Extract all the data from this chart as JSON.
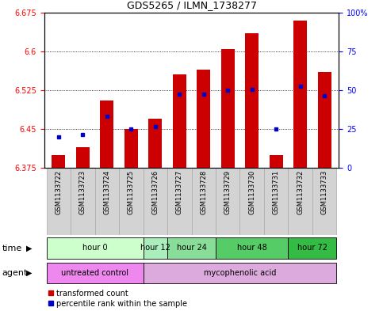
{
  "title": "GDS5265 / ILMN_1738277",
  "samples": [
    "GSM1133722",
    "GSM1133723",
    "GSM1133724",
    "GSM1133725",
    "GSM1133726",
    "GSM1133727",
    "GSM1133728",
    "GSM1133729",
    "GSM1133730",
    "GSM1133731",
    "GSM1133732",
    "GSM1133733"
  ],
  "red_values": [
    6.4,
    6.415,
    6.505,
    6.45,
    6.47,
    6.555,
    6.565,
    6.605,
    6.635,
    6.4,
    6.66,
    6.56
  ],
  "blue_values": [
    6.435,
    6.44,
    6.475,
    6.45,
    6.455,
    6.518,
    6.518,
    6.525,
    6.527,
    6.45,
    6.533,
    6.515
  ],
  "y_min": 6.375,
  "y_max": 6.675,
  "y_ticks_left": [
    6.375,
    6.45,
    6.525,
    6.6,
    6.675
  ],
  "y_ticks_right": [
    0,
    25,
    50,
    75,
    100
  ],
  "bar_base": 6.375,
  "bar_color": "#cc0000",
  "blue_color": "#0000cc",
  "time_groups": [
    {
      "label": "hour 0",
      "start": 0,
      "end": 3,
      "color": "#ccffcc"
    },
    {
      "label": "hour 12",
      "start": 4,
      "end": 4,
      "color": "#aaeebb"
    },
    {
      "label": "hour 24",
      "start": 5,
      "end": 6,
      "color": "#88dd99"
    },
    {
      "label": "hour 48",
      "start": 7,
      "end": 9,
      "color": "#55cc66"
    },
    {
      "label": "hour 72",
      "start": 10,
      "end": 11,
      "color": "#33bb44"
    }
  ],
  "agent_groups": [
    {
      "label": "untreated control",
      "start": 0,
      "end": 3,
      "color": "#ee88ee"
    },
    {
      "label": "mycophenolic acid",
      "start": 4,
      "end": 11,
      "color": "#ddaadd"
    }
  ],
  "legend_red": "transformed count",
  "legend_blue": "percentile rank within the sample"
}
